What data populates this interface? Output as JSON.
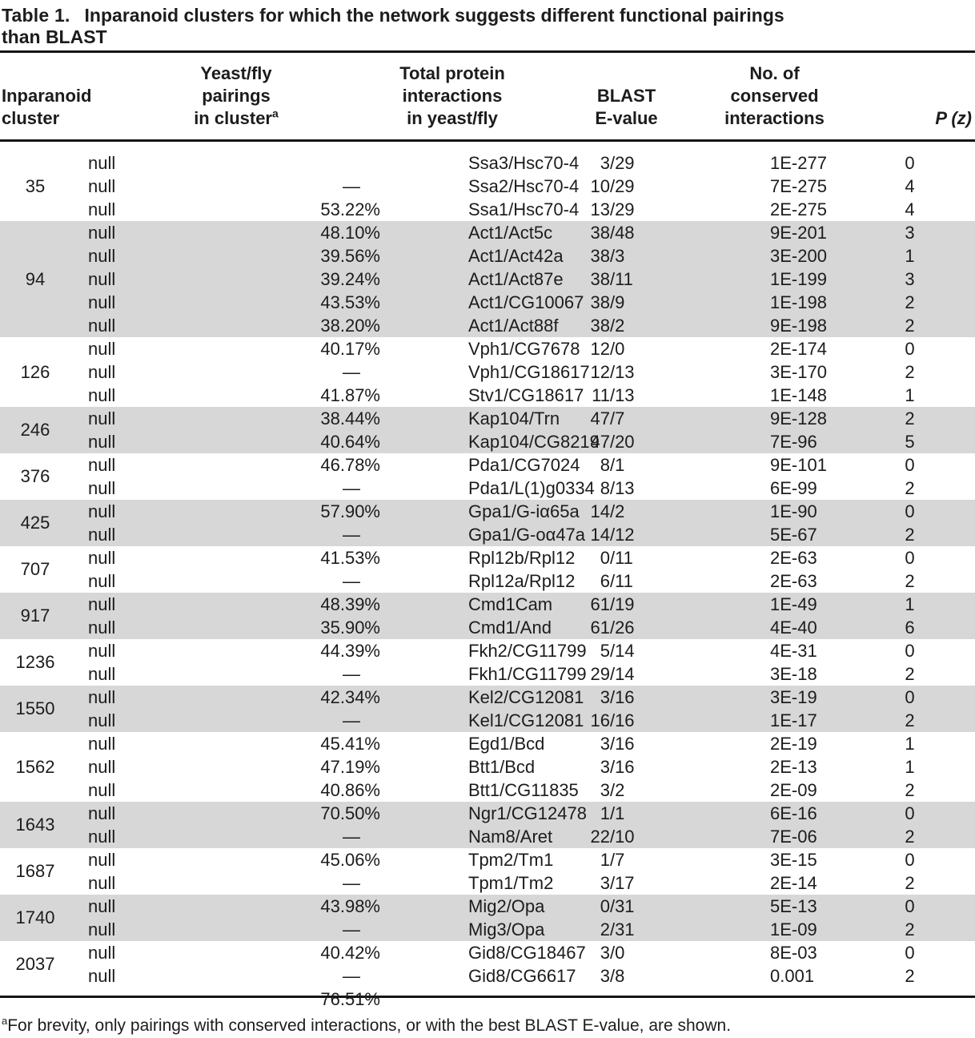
{
  "title": {
    "label": "Table 1.",
    "line1": "Inparanoid clusters for which the network suggests different functional pairings",
    "line2": "than BLAST"
  },
  "columns": [
    {
      "id": "cluster",
      "lines": [
        "Inparanoid",
        "cluster"
      ]
    },
    {
      "id": "pairings",
      "lines": [
        "Yeast/fly",
        "pairings",
        "in cluster"
      ],
      "superscript": "a"
    },
    {
      "id": "interactions",
      "lines": [
        "Total protein",
        "interactions",
        "in yeast/fly"
      ]
    },
    {
      "id": "evalue",
      "lines": [
        "BLAST",
        "E-value"
      ]
    },
    {
      "id": "conserved",
      "lines": [
        "No. of",
        "conserved",
        "interactions"
      ]
    },
    {
      "id": "pz",
      "lines": [
        "P (z)"
      ]
    }
  ],
  "groups": [
    {
      "cluster": "35",
      "shaded": false,
      "rows": [
        {
          "pairing": "Ssa3/Hsc70-4",
          "interactions": "3/29",
          "evalue": "1E-277",
          "conserved": "0",
          "pz": "—"
        },
        {
          "pairing": "Ssa2/Hsc70-4",
          "interactions": "10/29",
          "evalue": "7E-275",
          "conserved": "4",
          "pz": "53.22%"
        },
        {
          "pairing": "Ssa1/Hsc70-4",
          "interactions": "13/29",
          "evalue": "2E-275",
          "conserved": "4",
          "pz": "48.10%"
        }
      ]
    },
    {
      "cluster": "94",
      "shaded": true,
      "rows": [
        {
          "pairing": "Act1/Act5c",
          "interactions": "38/48",
          "evalue": "9E-201",
          "conserved": "3",
          "pz": "39.56%"
        },
        {
          "pairing": "Act1/Act42a",
          "interactions": "38/3",
          "evalue": "3E-200",
          "conserved": "1",
          "pz": "39.24%"
        },
        {
          "pairing": "Act1/Act87e",
          "interactions": "38/11",
          "evalue": "1E-199",
          "conserved": "3",
          "pz": "43.53%"
        },
        {
          "pairing": "Act1/CG10067",
          "interactions": "38/9",
          "evalue": "1E-198",
          "conserved": "2",
          "pz": "38.20%"
        },
        {
          "pairing": "Act1/Act88f",
          "interactions": "38/2",
          "evalue": "9E-198",
          "conserved": "2",
          "pz": "40.17%"
        }
      ]
    },
    {
      "cluster": "126",
      "shaded": false,
      "rows": [
        {
          "pairing": "Vph1/CG7678",
          "interactions": "12/0",
          "evalue": "2E-174",
          "conserved": "0",
          "pz": "—"
        },
        {
          "pairing": "Vph1/CG18617",
          "interactions": "12/13",
          "evalue": "3E-170",
          "conserved": "2",
          "pz": "41.87%"
        },
        {
          "pairing": "Stv1/CG18617",
          "interactions": "11/13",
          "evalue": "1E-148",
          "conserved": "1",
          "pz": "38.44%"
        }
      ]
    },
    {
      "cluster": "246",
      "shaded": true,
      "rows": [
        {
          "pairing": "Kap104/Trn",
          "interactions": "47/7",
          "evalue": "9E-128",
          "conserved": "2",
          "pz": "40.64%"
        },
        {
          "pairing": "Kap104/CG8219",
          "interactions": "47/20",
          "evalue": "7E-96",
          "conserved": "5",
          "pz": "46.78%"
        }
      ]
    },
    {
      "cluster": "376",
      "shaded": false,
      "rows": [
        {
          "pairing": "Pda1/CG7024",
          "interactions": "8/1",
          "evalue": "9E-101",
          "conserved": "0",
          "pz": "—"
        },
        {
          "pairing": "Pda1/L(1)g0334",
          "interactions": "8/13",
          "evalue": "6E-99",
          "conserved": "2",
          "pz": "57.90%"
        }
      ]
    },
    {
      "cluster": "425",
      "shaded": true,
      "rows": [
        {
          "pairing": "Gpa1/G-iα65a",
          "interactions": "14/2",
          "evalue": "1E-90",
          "conserved": "0",
          "pz": "—"
        },
        {
          "pairing": "Gpa1/G-oα47a",
          "interactions": "14/12",
          "evalue": "5E-67",
          "conserved": "2",
          "pz": "41.53%"
        }
      ]
    },
    {
      "cluster": "707",
      "shaded": false,
      "rows": [
        {
          "pairing": "Rpl12b/Rpl12",
          "interactions": "0/11",
          "evalue": "2E-63",
          "conserved": "0",
          "pz": "—"
        },
        {
          "pairing": "Rpl12a/Rpl12",
          "interactions": "6/11",
          "evalue": "2E-63",
          "conserved": "2",
          "pz": "48.39%"
        }
      ]
    },
    {
      "cluster": "917",
      "shaded": true,
      "rows": [
        {
          "pairing": "Cmd1Cam",
          "interactions": "61/19",
          "evalue": "1E-49",
          "conserved": "1",
          "pz": "35.90%"
        },
        {
          "pairing": "Cmd1/And",
          "interactions": "61/26",
          "evalue": "4E-40",
          "conserved": "6",
          "pz": "44.39%"
        }
      ]
    },
    {
      "cluster": "1236",
      "shaded": false,
      "rows": [
        {
          "pairing": "Fkh2/CG11799",
          "interactions": "5/14",
          "evalue": "4E-31",
          "conserved": "0",
          "pz": "—"
        },
        {
          "pairing": "Fkh1/CG11799",
          "interactions": "29/14",
          "evalue": "3E-18",
          "conserved": "2",
          "pz": "42.34%"
        }
      ]
    },
    {
      "cluster": "1550",
      "shaded": true,
      "rows": [
        {
          "pairing": "Kel2/CG12081",
          "interactions": "3/16",
          "evalue": "3E-19",
          "conserved": "0",
          "pz": "—"
        },
        {
          "pairing": "Kel1/CG12081",
          "interactions": "16/16",
          "evalue": "1E-17",
          "conserved": "2",
          "pz": "45.41%"
        }
      ]
    },
    {
      "cluster": "1562",
      "shaded": false,
      "rows": [
        {
          "pairing": "Egd1/Bcd",
          "interactions": "3/16",
          "evalue": "2E-19",
          "conserved": "1",
          "pz": "47.19%"
        },
        {
          "pairing": "Btt1/Bcd",
          "interactions": "3/16",
          "evalue": "2E-13",
          "conserved": "1",
          "pz": "40.86%"
        },
        {
          "pairing": "Btt1/CG11835",
          "interactions": "3/2",
          "evalue": "2E-09",
          "conserved": "2",
          "pz": "70.50%"
        }
      ]
    },
    {
      "cluster": "1643",
      "shaded": true,
      "rows": [
        {
          "pairing": "Ngr1/CG12478",
          "interactions": "1/1",
          "evalue": "6E-16",
          "conserved": "0",
          "pz": "—"
        },
        {
          "pairing": "Nam8/Aret",
          "interactions": "22/10",
          "evalue": "7E-06",
          "conserved": "2",
          "pz": "45.06%"
        }
      ]
    },
    {
      "cluster": "1687",
      "shaded": false,
      "rows": [
        {
          "pairing": "Tpm2/Tm1",
          "interactions": "1/7",
          "evalue": "3E-15",
          "conserved": "0",
          "pz": "—"
        },
        {
          "pairing": "Tpm1/Tm2",
          "interactions": "3/17",
          "evalue": "2E-14",
          "conserved": "2",
          "pz": "43.98%"
        }
      ]
    },
    {
      "cluster": "1740",
      "shaded": true,
      "rows": [
        {
          "pairing": "Mig2/Opa",
          "interactions": "0/31",
          "evalue": "5E-13",
          "conserved": "0",
          "pz": "—"
        },
        {
          "pairing": "Mig3/Opa",
          "interactions": "2/31",
          "evalue": "1E-09",
          "conserved": "2",
          "pz": "40.42%"
        }
      ]
    },
    {
      "cluster": "2037",
      "shaded": false,
      "rows": [
        {
          "pairing": "Gid8/CG18467",
          "interactions": "3/0",
          "evalue": "8E-03",
          "conserved": "0",
          "pz": "—"
        },
        {
          "pairing": "Gid8/CG6617",
          "interactions": "3/8",
          "evalue": "0.001",
          "conserved": "2",
          "pz": "76.51%"
        }
      ]
    }
  ],
  "footnote": {
    "superscript": "a",
    "text": "For brevity, only pairings with conserved interactions, or with the best BLAST E-value, are shown."
  },
  "colors": {
    "shaded_row": "#d7d7d7",
    "text": "#1c1c1c",
    "rule": "#151515"
  }
}
